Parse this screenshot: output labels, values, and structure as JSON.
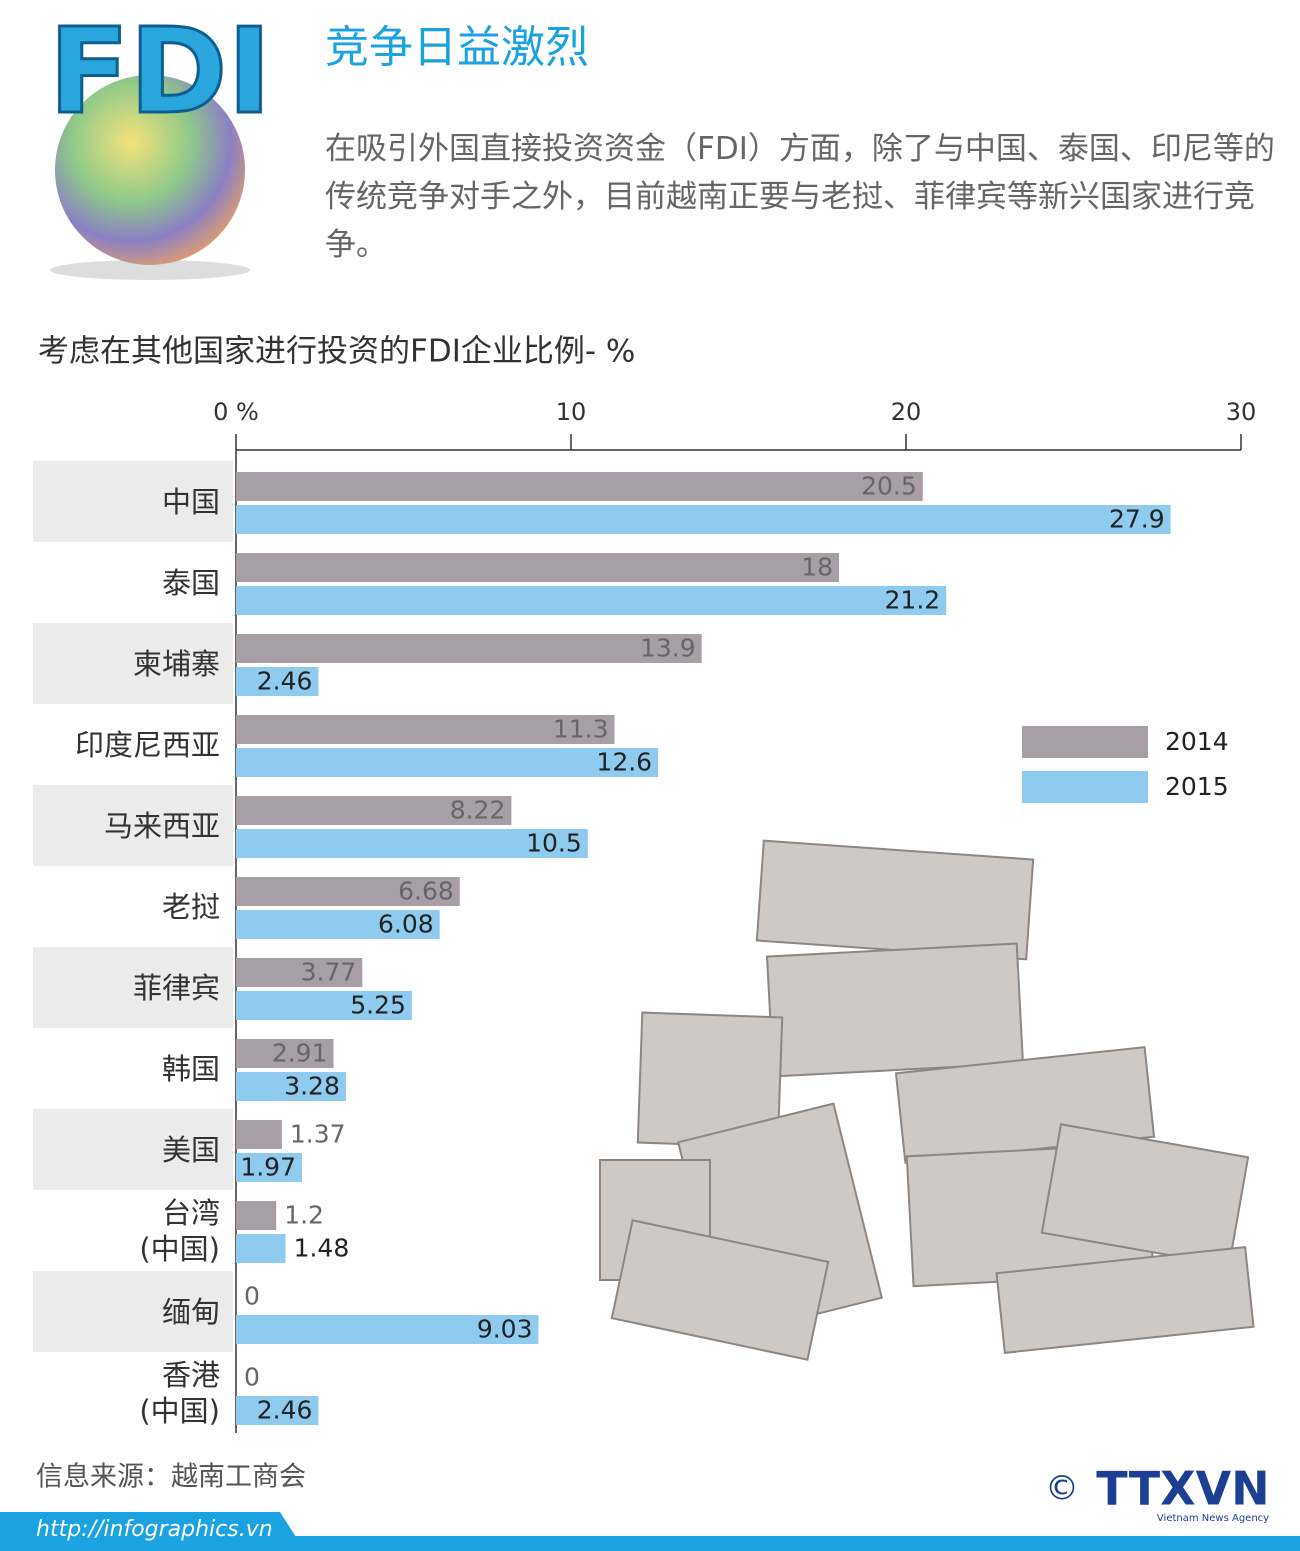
{
  "header": {
    "logo": "FDI",
    "title": "竞争日益激烈",
    "description": "在吸引外国直接投资资金（FDI）方面，除了与中国、泰国、印尼等的传统竞争对手之外，目前越南正要与老挝、菲律宾等新兴国家进行竞争。"
  },
  "chart_data": {
    "type": "bar",
    "title": "考虑在其他国家进行投资的FDI企业比例- %",
    "categories": [
      "中国",
      "泰国",
      "柬埔寨",
      "印度尼西亚",
      "马来西亚",
      "老挝",
      "菲律宾",
      "韩国",
      "美国",
      "台湾\n(中国)",
      "缅甸",
      "香港\n(中国)"
    ],
    "series": [
      {
        "name": "2014",
        "color": "#a89ea6",
        "values": [
          20.5,
          18,
          13.9,
          11.3,
          8.22,
          6.68,
          3.77,
          2.91,
          1.37,
          1.2,
          0,
          0
        ]
      },
      {
        "name": "2015",
        "color": "#8ecbef",
        "values": [
          27.9,
          21.2,
          2.46,
          12.6,
          10.5,
          6.08,
          5.25,
          3.28,
          1.97,
          1.48,
          9.03,
          2.46
        ]
      }
    ],
    "xlim": [
      0,
      30
    ],
    "xticks": [
      {
        "value": 0,
        "label": "0 %"
      },
      10,
      20,
      30
    ]
  },
  "footer": {
    "source": "信息来源：越南工商会",
    "url": "http://infographics.vn",
    "copyright": "©",
    "agency": "TTXVN",
    "agency_subtitle": "Vietnam News Agency"
  }
}
